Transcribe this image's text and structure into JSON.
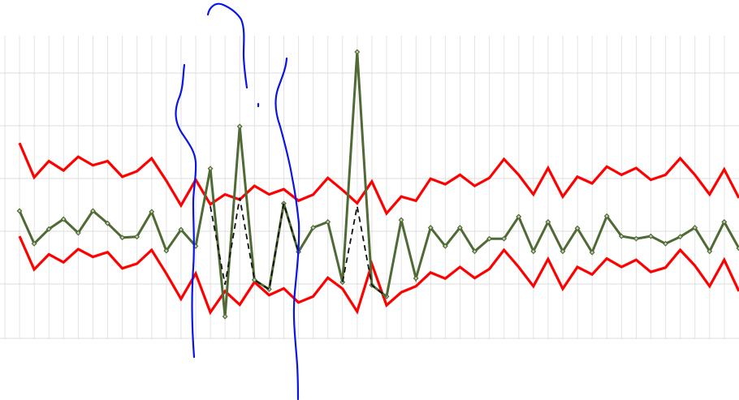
{
  "chart_data": {
    "type": "line",
    "x": [
      0,
      1,
      2,
      3,
      4,
      5,
      6,
      7,
      8,
      9,
      10,
      11,
      12,
      13,
      14,
      15,
      16,
      17,
      18,
      19,
      20,
      21,
      22,
      23,
      24,
      25,
      26,
      27,
      28,
      29,
      30,
      31,
      32,
      33,
      34,
      35,
      36,
      37,
      38,
      39,
      40,
      41,
      42,
      43,
      44,
      45,
      46,
      47,
      48,
      49
    ],
    "ylim": [
      0,
      100
    ],
    "grid": true,
    "legend": "none",
    "series": [
      {
        "color": "#ff0000",
        "style": "solid",
        "markers": false,
        "values": [
          66.9,
          54.4,
          60.3,
          56.9,
          61.9,
          58.8,
          60.3,
          54.6,
          56.6,
          61.3,
          53.2,
          44.2,
          53.5,
          44.6,
          48.2,
          46.3,
          51.3,
          48.2,
          50.1,
          45.9,
          48.1,
          54.2,
          49.8,
          45.0,
          52.9,
          41.3,
          47.4,
          45.9,
          53.9,
          51.9,
          55.3,
          51.3,
          54.2,
          61.0,
          55.3,
          48.2,
          57.8,
          47.4,
          54.6,
          52.2,
          58.3,
          55.3,
          57.8,
          53.5,
          55.3,
          61.3,
          55.3,
          48.2,
          57.3,
          46.9
        ]
      },
      {
        "color": "#ff0000",
        "style": "solid",
        "markers": false,
        "values": [
          33.0,
          20.9,
          26.4,
          23.5,
          28.3,
          25.5,
          27.2,
          21.3,
          23.0,
          28.0,
          19.4,
          10.2,
          19.4,
          5.3,
          13.0,
          8.1,
          16.3,
          11.6,
          14.0,
          8.9,
          11.1,
          17.9,
          13.9,
          5.6,
          22.9,
          7.9,
          12.6,
          14.8,
          19.8,
          17.6,
          21.8,
          17.8,
          21.1,
          28.0,
          21.8,
          14.8,
          24.7,
          13.9,
          21.8,
          19.1,
          24.9,
          21.8,
          24.4,
          20.0,
          21.6,
          28.0,
          22.3,
          14.8,
          24.4,
          13.0
        ]
      },
      {
        "color": "#4f6a34",
        "style": "solid",
        "markers": true,
        "values": [
          42.2,
          30.3,
          35.6,
          39.2,
          34.2,
          42.2,
          37.7,
          32.5,
          32.8,
          41.9,
          27.7,
          35.4,
          29.4,
          57.6,
          3.8,
          72.9,
          17.1,
          13.7,
          44.9,
          27.3,
          36.1,
          38.2,
          16.3,
          100.0,
          15.2,
          11.1,
          38.9,
          17.7,
          36.1,
          29.4,
          36.1,
          27.5,
          32.1,
          32.1,
          40.1,
          27.5,
          38.2,
          27.5,
          35.9,
          27.1,
          40.3,
          33.0,
          32.1,
          33.0,
          30.3,
          32.8,
          36.1,
          27.5,
          38.2,
          28.6
        ]
      },
      {
        "color": "#111111",
        "style": "dashed",
        "markers": false,
        "values": [
          null,
          null,
          null,
          null,
          null,
          null,
          null,
          null,
          null,
          null,
          null,
          null,
          null,
          43.9,
          15.4,
          47.0,
          17.1,
          13.7,
          44.9,
          27.3,
          null,
          null,
          16.3,
          43.9,
          15.2,
          11.1,
          null,
          null,
          null,
          null,
          null,
          null,
          null,
          null,
          null,
          null,
          null,
          null,
          null,
          null,
          null,
          null,
          null,
          null,
          null,
          null,
          null,
          null,
          null,
          null
        ]
      }
    ]
  }
}
